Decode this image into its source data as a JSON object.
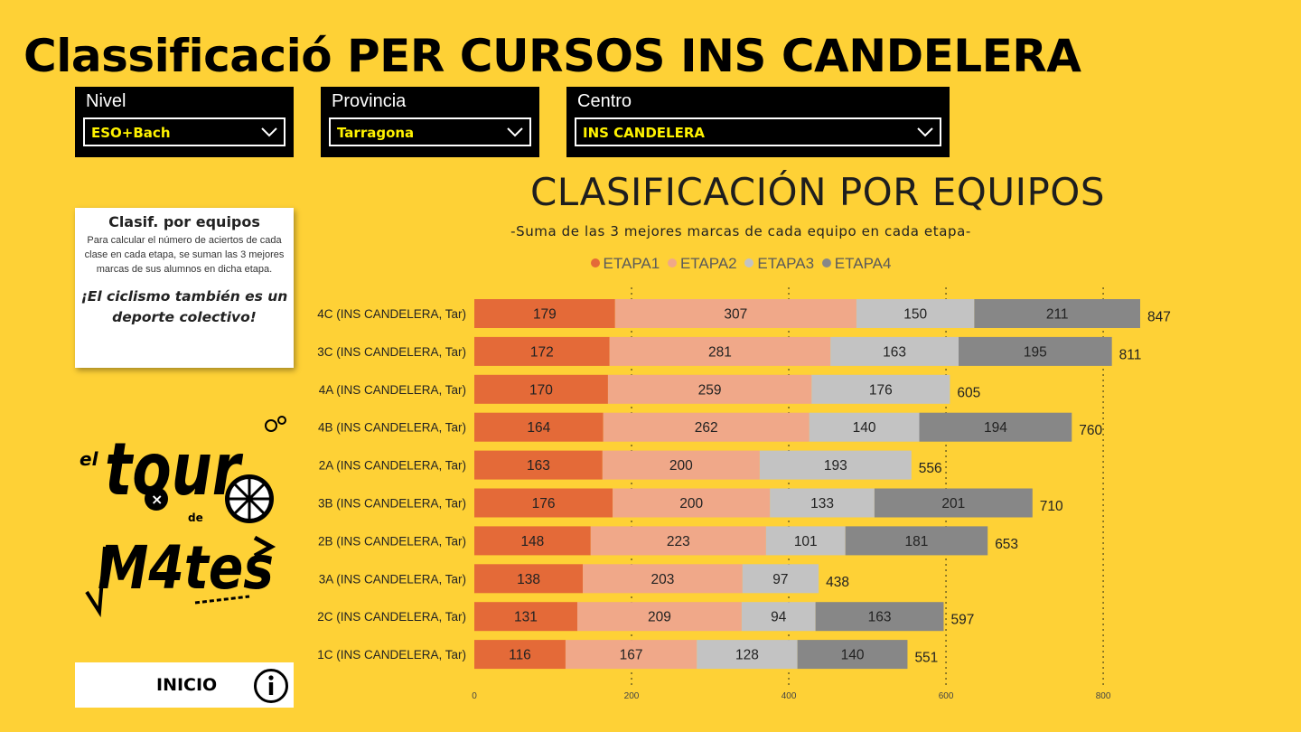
{
  "page": {
    "title": "Classificació PER CURSOS INS CANDELERA"
  },
  "filters": [
    {
      "label": "Nivel",
      "value": "ESO+Bach"
    },
    {
      "label": "Provincia",
      "value": "Tarragona"
    },
    {
      "label": "Centro",
      "value": "INS CANDELERA"
    }
  ],
  "info_card": {
    "title": "Clasif. por equipos",
    "body": "Para calcular el número de aciertos de cada clase en cada etapa, se suman las 3 mejores marcas de sus alumnos en dicha etapa.",
    "quote": "¡El ciclismo también es un deporte colectivo!"
  },
  "logo": {
    "name": "el tour de m4tes",
    "text_el": "el",
    "text_tour": "tour",
    "text_de": "de",
    "text_mates": "M4tes"
  },
  "inicio_button": {
    "label": "INICIO",
    "icon": "info-icon"
  },
  "colors": {
    "background": "#fed136",
    "etapa1": "#e46a38",
    "etapa2": "#f0a889",
    "etapa3": "#c3c3c3",
    "etapa4": "#878787"
  },
  "chart_data": {
    "type": "bar",
    "orientation": "horizontal",
    "stacked": true,
    "title": "CLASIFICACIÓN POR EQUIPOS",
    "subtitle": "-Suma de las 3 mejores marcas de cada equipo en cada etapa-",
    "categories": [
      "4C (INS CANDELERA, Tar)",
      "3C (INS CANDELERA, Tar)",
      "4A (INS CANDELERA, Tar)",
      "4B (INS CANDELERA, Tar)",
      "2A (INS CANDELERA, Tar)",
      "3B (INS CANDELERA, Tar)",
      "2B (INS CANDELERA, Tar)",
      "3A (INS CANDELERA, Tar)",
      "2C (INS CANDELERA, Tar)",
      "1C (INS CANDELERA, Tar)"
    ],
    "series": [
      {
        "name": "ETAPA1",
        "color": "#e46a38",
        "values": [
          179,
          172,
          170,
          164,
          163,
          176,
          148,
          138,
          131,
          116
        ]
      },
      {
        "name": "ETAPA2",
        "color": "#f0a889",
        "values": [
          307,
          281,
          259,
          262,
          200,
          200,
          223,
          203,
          209,
          167
        ]
      },
      {
        "name": "ETAPA3",
        "color": "#c3c3c3",
        "values": [
          150,
          163,
          176,
          140,
          193,
          133,
          101,
          97,
          94,
          128
        ]
      },
      {
        "name": "ETAPA4",
        "color": "#878787",
        "values": [
          211,
          195,
          null,
          194,
          null,
          201,
          181,
          null,
          163,
          140
        ]
      }
    ],
    "totals": [
      847,
      811,
      605,
      760,
      556,
      710,
      653,
      438,
      597,
      551
    ],
    "x_ticks": [
      0,
      200,
      400,
      600,
      800
    ],
    "xlim": [
      0,
      847
    ],
    "grid": true,
    "legend_position": "top-center"
  }
}
